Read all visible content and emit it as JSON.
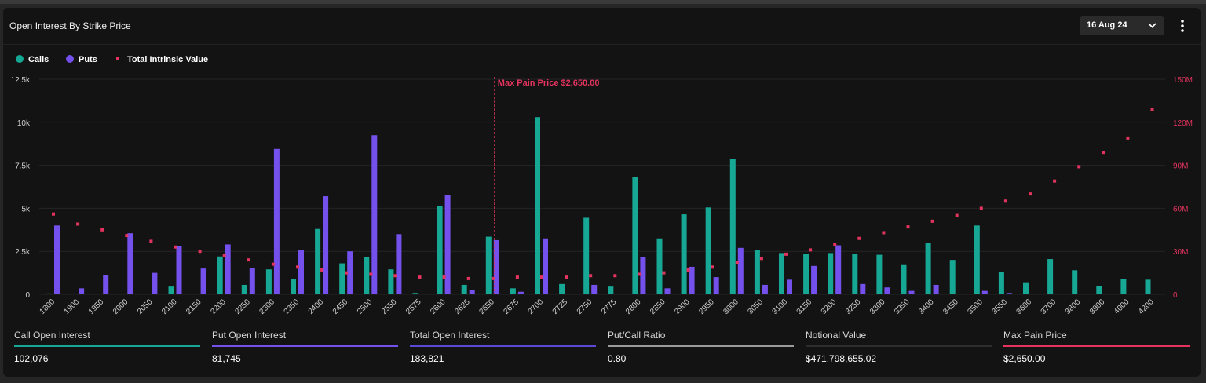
{
  "title": "Open Interest By Strike Price",
  "date_selector": {
    "value": "16 Aug 24"
  },
  "icons": {
    "dropdown": "chevron-down-icon",
    "menu": "more-vertical-icon"
  },
  "legend": [
    {
      "label": "Calls",
      "color": "#17a795",
      "shape": "circle"
    },
    {
      "label": "Puts",
      "color": "#7450ec",
      "shape": "circle"
    },
    {
      "label": "Total Intrinsic Value",
      "color": "#e3335e",
      "shape": "square"
    }
  ],
  "colors": {
    "calls": "#17a795",
    "puts": "#7450ec",
    "intrinsic": "#e3335e",
    "max_pain": "#e3335e",
    "grid": "#242424",
    "axis_text": "#d0d0d0"
  },
  "chart_data": {
    "type": "bar",
    "categories": [
      "1800",
      "1900",
      "1950",
      "2000",
      "2050",
      "2100",
      "2150",
      "2200",
      "2250",
      "2300",
      "2350",
      "2400",
      "2450",
      "2500",
      "2550",
      "2575",
      "2600",
      "2625",
      "2650",
      "2675",
      "2700",
      "2725",
      "2750",
      "2775",
      "2800",
      "2850",
      "2900",
      "2950",
      "3000",
      "3050",
      "3100",
      "3150",
      "3200",
      "3250",
      "3300",
      "3350",
      "3400",
      "3450",
      "3500",
      "3550",
      "3600",
      "3700",
      "3800",
      "3900",
      "4000",
      "4200"
    ],
    "series": [
      {
        "name": "Calls",
        "axis": "left",
        "values": [
          50,
          0,
          0,
          0,
          0,
          450,
          0,
          2200,
          550,
          1450,
          900,
          3800,
          1800,
          2150,
          1450,
          80,
          5150,
          550,
          3350,
          350,
          10300,
          600,
          4450,
          450,
          6800,
          3250,
          4650,
          5050,
          7850,
          2600,
          2400,
          2350,
          2400,
          2350,
          2300,
          1700,
          3000,
          2000,
          4000,
          1300,
          700,
          2050,
          1400,
          500,
          900,
          850
        ]
      },
      {
        "name": "Puts",
        "axis": "left",
        "values": [
          4000,
          350,
          1100,
          3550,
          1250,
          2800,
          1500,
          2900,
          1550,
          8450,
          2600,
          5700,
          2500,
          9250,
          3500,
          0,
          5750,
          250,
          3150,
          150,
          3250,
          0,
          550,
          0,
          2150,
          350,
          1600,
          1000,
          2700,
          550,
          850,
          1650,
          2850,
          600,
          400,
          200,
          550,
          0,
          200,
          80,
          0,
          0,
          0,
          0,
          0,
          0
        ]
      },
      {
        "name": "Total Intrinsic Value",
        "axis": "right",
        "type": "scatter",
        "values": [
          56,
          49,
          45,
          41,
          37,
          33,
          30,
          27,
          24,
          21,
          19,
          17,
          15,
          14,
          13,
          12,
          12,
          11,
          11,
          12,
          12,
          12,
          13,
          13,
          14,
          15,
          17,
          19,
          22,
          25,
          28,
          31,
          35,
          39,
          43,
          47,
          51,
          55,
          60,
          65,
          70,
          79,
          89,
          99,
          109,
          129
        ]
      }
    ],
    "left_axis": {
      "ticks": [
        "0",
        "2.5k",
        "5k",
        "7.5k",
        "10k",
        "12.5k"
      ],
      "ylim": [
        0,
        12500
      ]
    },
    "right_axis": {
      "ticks": [
        "0",
        "30M",
        "60M",
        "90M",
        "120M",
        "150M"
      ],
      "ylim": [
        0,
        150
      ],
      "unit": "M"
    },
    "max_pain": {
      "label": "Max Pain Price $2,650.00",
      "strike": "2650"
    },
    "grid": true
  },
  "stats": [
    {
      "label": "Call Open Interest",
      "value": "102,076",
      "color": "#17a795"
    },
    {
      "label": "Put Open Interest",
      "value": "81,745",
      "color": "#7450ec"
    },
    {
      "label": "Total Open Interest",
      "value": "183,821",
      "color": "#5b48d6"
    },
    {
      "label": "Put/Call Ratio",
      "value": "0.80",
      "color": "#9a9a9a"
    },
    {
      "label": "Notional Value",
      "value": "$471,798,655.02",
      "color": "#2e2e2e"
    },
    {
      "label": "Max Pain Price",
      "value": "$2,650.00",
      "color": "#e3335e"
    }
  ]
}
